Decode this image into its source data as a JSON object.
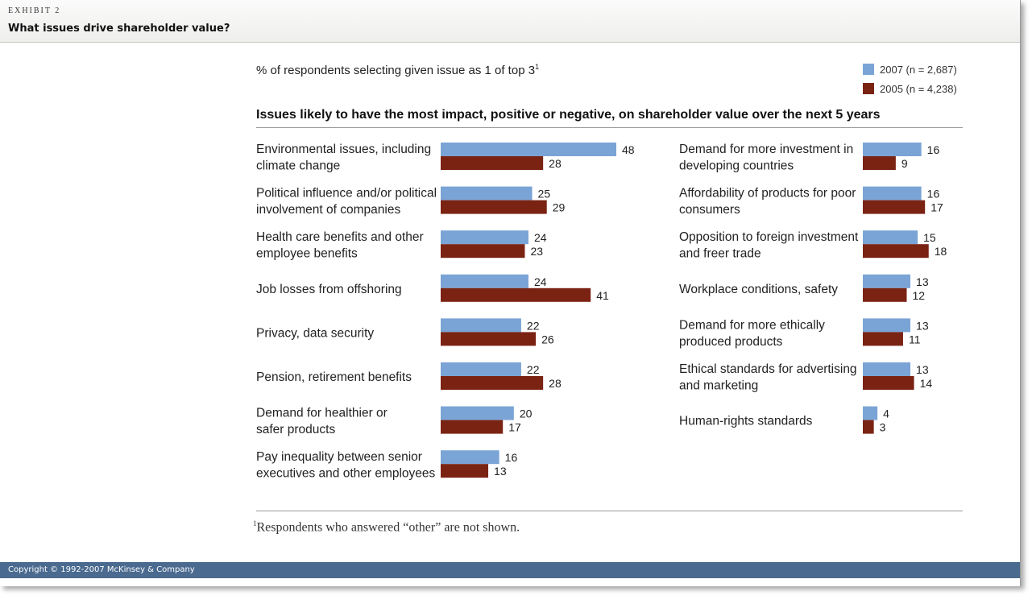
{
  "header": {
    "exhibit": "EXHIBIT 2",
    "title": "What issues drive shareholder value?"
  },
  "subtitle_text": "% of respondents selecting given issue as 1 of top 3",
  "subtitle_sup": "1",
  "footnote": {
    "marker": "1",
    "text": "Respondents who answered “other” are not shown."
  },
  "copyright": "Copyright © 1992-2007 McKinsey & Company",
  "colors": {
    "series_2007": "#7ba4d6",
    "series_2005": "#7b2313"
  },
  "chart_data": {
    "type": "bar",
    "orientation": "horizontal",
    "title": "Issues likely to have the most impact, positive or negative, on shareholder value over the next 5 years",
    "series": [
      {
        "name": "2007 (n = 2,687)",
        "key": "y2007"
      },
      {
        "name": "2005 (n = 4,238)",
        "key": "y2005"
      }
    ],
    "panels": [
      {
        "position": "left",
        "items": [
          {
            "label": [
              "Environmental issues, including",
              "climate change"
            ],
            "y2007": 48,
            "y2005": 28
          },
          {
            "label": [
              "Political influence and/or political",
              "involvement of companies"
            ],
            "y2007": 25,
            "y2005": 29
          },
          {
            "label": [
              "Health care benefits and other",
              "employee benefits"
            ],
            "y2007": 24,
            "y2005": 23
          },
          {
            "label": [
              "Job losses from offshoring"
            ],
            "y2007": 24,
            "y2005": 41
          },
          {
            "label": [
              "Privacy, data security"
            ],
            "y2007": 22,
            "y2005": 26
          },
          {
            "label": [
              "Pension, retirement benefits"
            ],
            "y2007": 22,
            "y2005": 28
          },
          {
            "label": [
              "Demand for healthier or",
              "safer products"
            ],
            "y2007": 20,
            "y2005": 17
          },
          {
            "label": [
              "Pay inequality between senior",
              "executives and other employees"
            ],
            "y2007": 16,
            "y2005": 13
          }
        ]
      },
      {
        "position": "right",
        "items": [
          {
            "label": [
              "Demand for more investment in",
              "developing countries"
            ],
            "y2007": 16,
            "y2005": 9
          },
          {
            "label": [
              "Affordability of products for poor",
              "consumers"
            ],
            "y2007": 16,
            "y2005": 17
          },
          {
            "label": [
              "Opposition to foreign investment",
              "and freer trade"
            ],
            "y2007": 15,
            "y2005": 18
          },
          {
            "label": [
              "Workplace conditions, safety"
            ],
            "y2007": 13,
            "y2005": 12
          },
          {
            "label": [
              "Demand for more ethically",
              "produced products"
            ],
            "y2007": 13,
            "y2005": 11
          },
          {
            "label": [
              "Ethical standards for advertising",
              "and marketing"
            ],
            "y2007": 13,
            "y2005": 14
          },
          {
            "label": [
              "Human-rights standards"
            ],
            "y2007": 4,
            "y2005": 3
          }
        ]
      }
    ]
  }
}
